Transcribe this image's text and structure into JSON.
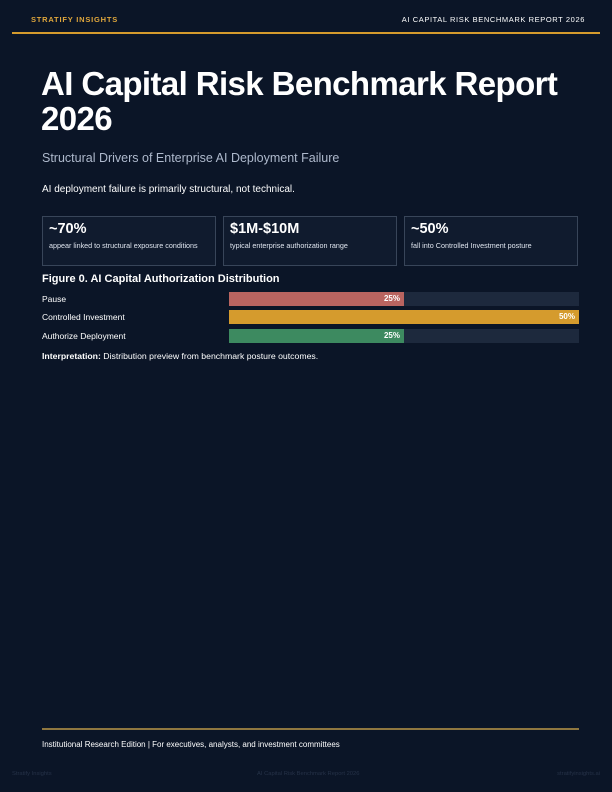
{
  "header": {
    "brand": "STRATIFY INSIGHTS",
    "report_label": "AI CAPITAL RISK BENCHMARK REPORT 2026"
  },
  "hero": {
    "title": "AI Capital Risk Benchmark Report 2026",
    "subtitle": "Structural Drivers of Enterprise AI Deployment Failure",
    "thesis": "AI deployment failure is primarily structural, not technical."
  },
  "stats": [
    {
      "value": "~70%",
      "description": "appear linked to structural exposure conditions"
    },
    {
      "value": "$1M-$10M",
      "description": "typical enterprise authorization range"
    },
    {
      "value": "~50%",
      "description": "fall into Controlled Investment posture"
    }
  ],
  "figure": {
    "title": "Figure 0. AI Capital Authorization Distribution",
    "interpretation_label": "Interpretation:",
    "interpretation_text": " Distribution preview from benchmark posture outcomes."
  },
  "chart_data": {
    "type": "bar",
    "orientation": "horizontal",
    "categories": [
      "Pause",
      "Controlled Investment",
      "Authorize Deployment"
    ],
    "values": [
      25,
      50,
      25
    ],
    "value_labels": [
      "25%",
      "50%",
      "25%"
    ],
    "max": 50,
    "colors": [
      "#b96460",
      "#d59b2d",
      "#3d8a60"
    ],
    "track_color": "#1d293d"
  },
  "footer": {
    "edition": "Institutional Research Edition | For executives, analysts, and investment committees"
  },
  "page_meta": {
    "left": "Stratify Insights",
    "center": "AI Capital Risk Benchmark Report 2026",
    "right": "stratifyinsights.ai"
  }
}
